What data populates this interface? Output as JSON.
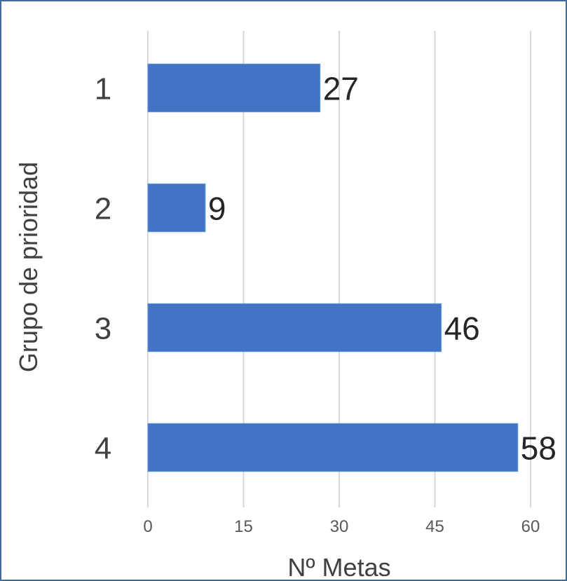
{
  "chart_data": {
    "type": "bar",
    "orientation": "horizontal",
    "categories": [
      "1",
      "2",
      "3",
      "4"
    ],
    "values": [
      27,
      9,
      46,
      58
    ],
    "title": "",
    "xlabel": "Nº Metas",
    "ylabel": "Grupo de prioridad",
    "xlim": [
      0,
      60
    ],
    "xticks": [
      0,
      15,
      30,
      45,
      60
    ],
    "grid": "vertical",
    "legend": "none",
    "colors": {
      "bar_fill": "#4472c4",
      "bar_stroke": "#5b9bd5",
      "frame": "#3f6e9e",
      "grid": "#d9d9d9"
    }
  }
}
